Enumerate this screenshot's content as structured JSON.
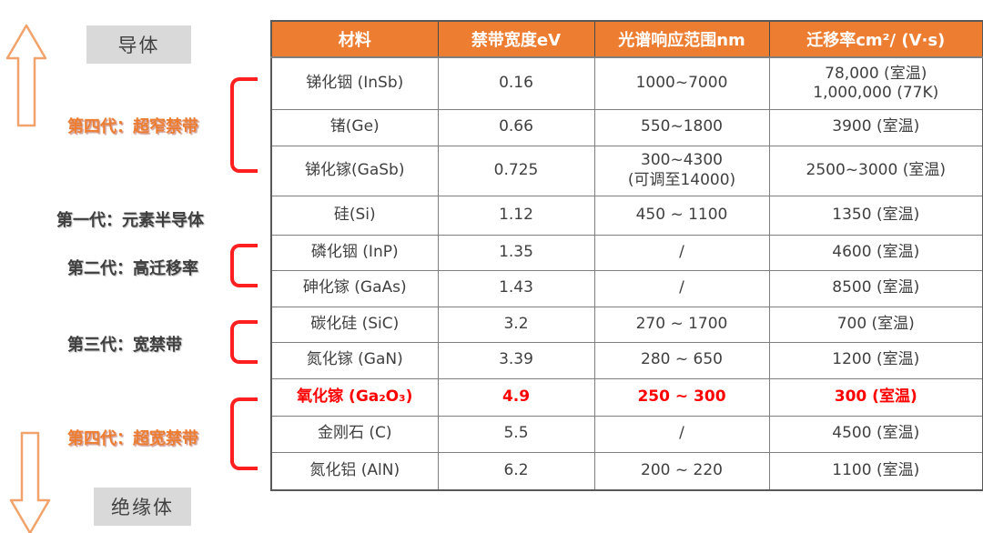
{
  "left_panel": {
    "conductor_label": "导体",
    "insulator_label": "绝缘体",
    "generations": [
      {
        "label": "第四代：超窄禁带",
        "color": "orange",
        "bracket_rows": [
          0,
          1,
          2
        ]
      },
      {
        "label": "第一代：元素半导体",
        "color": "dark",
        "bracket_rows": [
          3
        ]
      },
      {
        "label": "第二代：高迁移率",
        "color": "dark",
        "bracket_rows": [
          4,
          5
        ]
      },
      {
        "label": "第三代：宽禁带",
        "color": "dark",
        "bracket_rows": [
          6,
          7
        ]
      },
      {
        "label": "第四代：超宽禁带",
        "color": "orange",
        "bracket_rows": [
          8,
          9,
          10
        ]
      }
    ],
    "up_arrow": "up-arrow",
    "down_arrow": "down-arrow"
  },
  "chart_data": {
    "type": "table",
    "columns": [
      "材料",
      "禁带宽度eV",
      "光谱响应范围nm",
      "迁移率cm²/ (V·s)"
    ],
    "rows": [
      {
        "cells": [
          [
            "锑化铟 (InSb)"
          ],
          [
            "0.16"
          ],
          [
            "1000~7000"
          ],
          [
            "78,000 (室温)",
            "1,000,000 (77K)"
          ]
        ],
        "highlight": false
      },
      {
        "cells": [
          [
            "锗(Ge)"
          ],
          [
            "0.66"
          ],
          [
            "550~1800"
          ],
          [
            "3900 (室温)"
          ]
        ],
        "highlight": false
      },
      {
        "cells": [
          [
            "锑化镓(GaSb)"
          ],
          [
            "0.725"
          ],
          [
            "300~4300",
            "(可调至14000)"
          ],
          [
            "2500~3000 (室温)"
          ]
        ],
        "highlight": false
      },
      {
        "cells": [
          [
            "硅(Si)"
          ],
          [
            "1.12"
          ],
          [
            "450 ~ 1100"
          ],
          [
            "1350 (室温)"
          ]
        ],
        "highlight": false
      },
      {
        "cells": [
          [
            "磷化铟 (InP)"
          ],
          [
            "1.35"
          ],
          [
            "/"
          ],
          [
            "4600 (室温)"
          ]
        ],
        "highlight": false
      },
      {
        "cells": [
          [
            "砷化镓 (GaAs)"
          ],
          [
            "1.43"
          ],
          [
            "/"
          ],
          [
            "8500 (室温)"
          ]
        ],
        "highlight": false
      },
      {
        "cells": [
          [
            "碳化硅 (SiC)"
          ],
          [
            "3.2"
          ],
          [
            "270 ~ 1700"
          ],
          [
            "700 (室温)"
          ]
        ],
        "highlight": false
      },
      {
        "cells": [
          [
            "氮化镓 (GaN)"
          ],
          [
            "3.39"
          ],
          [
            "280 ~ 650"
          ],
          [
            "1200 (室温)"
          ]
        ],
        "highlight": false
      },
      {
        "cells": [
          [
            "氧化镓 (Ga₂O₃)"
          ],
          [
            "4.9"
          ],
          [
            "250 ~ 300"
          ],
          [
            "300 (室温)"
          ]
        ],
        "highlight": true
      },
      {
        "cells": [
          [
            "金刚石 (C)"
          ],
          [
            "5.5"
          ],
          [
            "/"
          ],
          [
            "4500 (室温)"
          ]
        ],
        "highlight": false
      },
      {
        "cells": [
          [
            "氮化铝 (AlN)"
          ],
          [
            "6.2"
          ],
          [
            "200 ~ 220"
          ],
          [
            "1100 (室温)"
          ]
        ],
        "highlight": false
      }
    ]
  },
  "colors": {
    "header_bg": "#ED7D31",
    "highlight_red": "#FF0000",
    "bracket_red": "#FF1F1F",
    "arrow_stroke": "#F2A36B",
    "label_orange": "#ED7D31",
    "label_dark": "#3F3F3F",
    "gray_box_bg": "#D9D9D9",
    "table_text": "#404040",
    "border_gray": "#7F7F7F"
  }
}
